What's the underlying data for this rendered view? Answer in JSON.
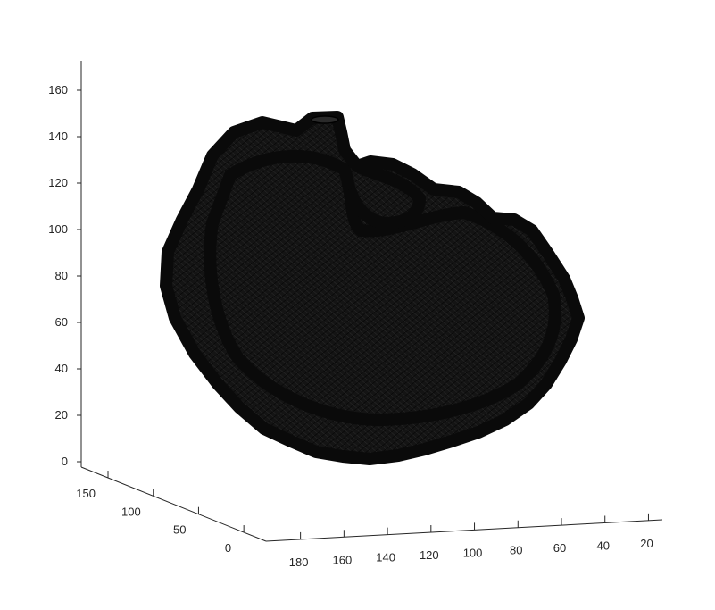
{
  "chart_data": {
    "type": "surface",
    "title": "",
    "xlabel": "",
    "ylabel": "",
    "zlabel": "",
    "grid": false,
    "colors": {
      "surface": "#141414",
      "edge": "#000000",
      "axis": "#262626",
      "background": "#ffffff"
    },
    "axes": {
      "z": {
        "ticks": [
          0,
          20,
          40,
          60,
          80,
          100,
          120,
          140,
          160
        ],
        "labels": [
          "0",
          "20",
          "40",
          "60",
          "80",
          "100",
          "120",
          "140",
          "160"
        ],
        "lim": [
          0,
          170
        ]
      },
      "y": {
        "ticks": [
          0,
          50,
          100,
          150
        ],
        "labels": [
          "0",
          "50",
          "100",
          "150"
        ],
        "lim": [
          0,
          190
        ]
      },
      "x": {
        "ticks": [
          180,
          160,
          140,
          120,
          100,
          80,
          60,
          40,
          20
        ],
        "labels": [
          "180",
          "160",
          "140",
          "120",
          "100",
          "80",
          "60",
          "40",
          "20"
        ],
        "lim": [
          10,
          190
        ]
      }
    },
    "object": "closed 3-D wireframe mesh surface (organ-like shape), rendered in black"
  }
}
